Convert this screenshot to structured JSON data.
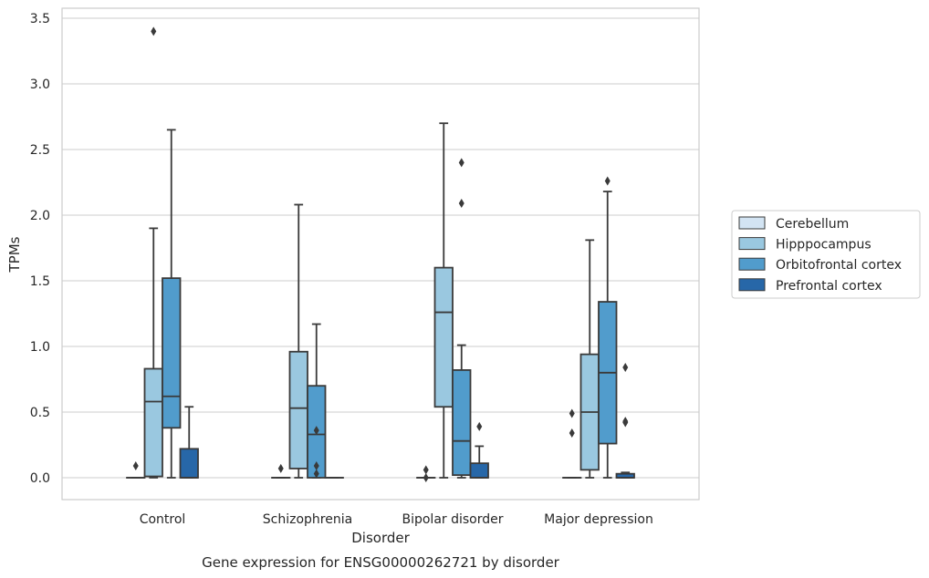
{
  "chart_data": {
    "type": "box",
    "title": "",
    "caption": "Gene expression for ENSG00000262721 by disorder",
    "xlabel": "Disorder",
    "ylabel": "TPMs",
    "ylim": [
      -0.17,
      3.57
    ],
    "yticks": [
      {
        "value": 0.0,
        "label": "0.0"
      },
      {
        "value": 0.5,
        "label": "0.5"
      },
      {
        "value": 1.0,
        "label": "1.0"
      },
      {
        "value": 1.5,
        "label": "1.5"
      },
      {
        "value": 2.0,
        "label": "2.0"
      },
      {
        "value": 2.5,
        "label": "2.5"
      },
      {
        "value": 3.0,
        "label": "3.0"
      },
      {
        "value": 3.5,
        "label": "3.5"
      }
    ],
    "grid": "horizontal",
    "legend_position": "right",
    "categories": [
      "Control",
      "Schizophrenia",
      "Bipolar disorder",
      "Major depression"
    ],
    "series": [
      {
        "name": "Cerebellum",
        "color": "#d3e4f3",
        "boxes": [
          {
            "whislo": 0.0,
            "q1": 0.0,
            "med": 0.0,
            "q3": 0.0,
            "whishi": 0.0,
            "fliers": [
              0.09
            ]
          },
          {
            "whislo": 0.0,
            "q1": 0.0,
            "med": 0.0,
            "q3": 0.0,
            "whishi": 0.0,
            "fliers": [
              0.07
            ]
          },
          {
            "whislo": 0.0,
            "q1": 0.0,
            "med": 0.0,
            "q3": 0.0,
            "whishi": 0.0,
            "fliers": [
              0.06,
              0.0
            ]
          },
          {
            "whislo": 0.0,
            "q1": 0.0,
            "med": 0.0,
            "q3": 0.0,
            "whishi": 0.0,
            "fliers": [
              0.49,
              0.34
            ]
          }
        ]
      },
      {
        "name": "Hipppocampus",
        "color": "#9ac8e0",
        "boxes": [
          {
            "whislo": 0.0,
            "q1": 0.01,
            "med": 0.58,
            "q3": 0.83,
            "whishi": 1.9,
            "fliers": [
              3.4
            ]
          },
          {
            "whislo": 0.0,
            "q1": 0.07,
            "med": 0.53,
            "q3": 0.96,
            "whishi": 2.08,
            "fliers": []
          },
          {
            "whislo": 0.0,
            "q1": 0.54,
            "med": 1.26,
            "q3": 1.6,
            "whishi": 2.7,
            "fliers": []
          },
          {
            "whislo": 0.0,
            "q1": 0.06,
            "med": 0.5,
            "q3": 0.94,
            "whishi": 1.81,
            "fliers": []
          }
        ]
      },
      {
        "name": "Orbitofrontal cortex",
        "color": "#519ccc",
        "boxes": [
          {
            "whislo": 0.0,
            "q1": 0.38,
            "med": 0.62,
            "q3": 1.52,
            "whishi": 2.65,
            "fliers": []
          },
          {
            "whislo": 0.0,
            "q1": 0.0,
            "med": 0.33,
            "q3": 0.7,
            "whishi": 1.17,
            "fliers": [
              0.36,
              0.09,
              0.03
            ]
          },
          {
            "whislo": 0.0,
            "q1": 0.02,
            "med": 0.28,
            "q3": 0.82,
            "whishi": 1.01,
            "fliers": [
              2.4,
              2.09
            ]
          },
          {
            "whislo": 0.0,
            "q1": 0.26,
            "med": 0.8,
            "q3": 1.34,
            "whishi": 2.18,
            "fliers": [
              2.26
            ]
          }
        ]
      },
      {
        "name": "Prefrontal cortex",
        "color": "#2767a8",
        "boxes": [
          {
            "whislo": 0.0,
            "q1": 0.0,
            "med": 0.0,
            "q3": 0.22,
            "whishi": 0.54,
            "fliers": []
          },
          {
            "whislo": 0.0,
            "q1": 0.0,
            "med": 0.0,
            "q3": 0.0,
            "whishi": 0.0,
            "fliers": []
          },
          {
            "whislo": 0.0,
            "q1": 0.0,
            "med": 0.0,
            "q3": 0.11,
            "whishi": 0.24,
            "fliers": [
              0.39
            ]
          },
          {
            "whislo": 0.0,
            "q1": 0.0,
            "med": 0.0,
            "q3": 0.03,
            "whishi": 0.04,
            "fliers": [
              0.84,
              0.43,
              0.42
            ]
          }
        ]
      }
    ]
  }
}
